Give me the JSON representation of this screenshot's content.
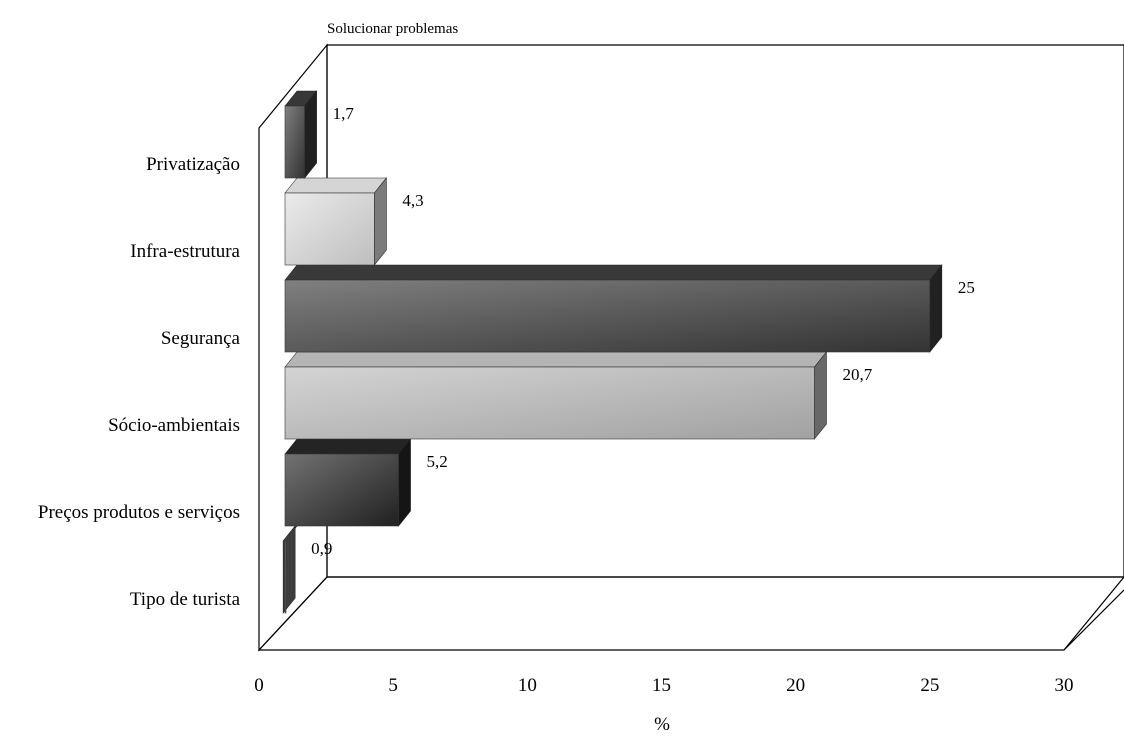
{
  "chart_data": {
    "type": "bar",
    "orientation": "horizontal",
    "three_d": true,
    "legend": "Solucionar problemas",
    "legend_position": "top-left",
    "categories": [
      "Tipo de turista",
      "Preços produtos e serviços",
      "Sócio-ambientais",
      "Segurança",
      "Infra-estrutura",
      "Privatização"
    ],
    "series": [
      {
        "name": "Solucionar problemas",
        "values": [
          0.9,
          5.2,
          20.7,
          25,
          4.3,
          1.7
        ]
      }
    ],
    "value_labels": [
      "0,9",
      "5,2",
      "20,7",
      "25",
      "4,3",
      "1,7"
    ],
    "bar_colors": [
      "#6e6e6e",
      "#262626",
      "#bdbdbd",
      "#3c3c3c",
      "#e0e0e0",
      "#3a3a3a"
    ],
    "xlabel": "%",
    "ylabel": "",
    "xlim": [
      0,
      30
    ],
    "xticks": [
      "0",
      "5",
      "10",
      "15",
      "20",
      "25",
      "30"
    ],
    "grid": false
  }
}
